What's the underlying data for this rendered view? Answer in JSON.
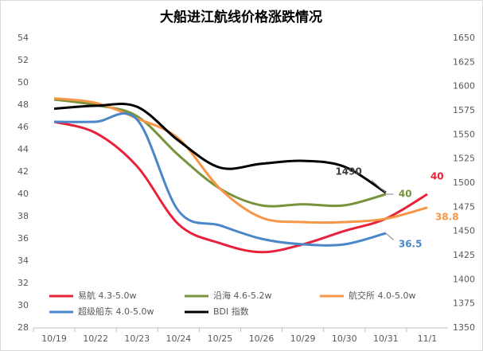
{
  "chart_data": {
    "type": "line",
    "title": "大船进江航线价格涨跌情况",
    "categories": [
      "10/19",
      "10/22",
      "10/23",
      "10/24",
      "10/25",
      "10/26",
      "10/29",
      "10/30",
      "10/31",
      "11/1"
    ],
    "ylim": [
      28,
      54
    ],
    "yticks": [
      28,
      30,
      32,
      34,
      36,
      38,
      40,
      42,
      44,
      46,
      48,
      50,
      52,
      54
    ],
    "y2lim": [
      1350,
      1650
    ],
    "y2ticks": [
      1350,
      1375,
      1400,
      1425,
      1450,
      1475,
      1500,
      1525,
      1550,
      1575,
      1600,
      1625,
      1650
    ],
    "grid": false,
    "legend": "bottom-left",
    "series": [
      {
        "name": "易航 4.3-5.0w",
        "color": "#e8213a",
        "values": [
          46.5,
          45.5,
          42.5,
          37.3,
          35.6,
          34.8,
          35.5,
          36.7,
          37.8,
          40
        ]
      },
      {
        "name": "沿海 4.6-5.2w",
        "color": "#77933c",
        "values": [
          48.5,
          48.0,
          47.0,
          43.5,
          40.5,
          39.0,
          39.1,
          39.0,
          40,
          null
        ]
      },
      {
        "name": "航交所 4.0-5.0w",
        "color": "#f79646",
        "values": [
          48.6,
          48.2,
          46.8,
          45.0,
          40.5,
          37.9,
          37.5,
          37.5,
          37.8,
          38.8
        ]
      },
      {
        "name": "超级船东 4.0-5.0w",
        "color": "#4a86c8",
        "values": [
          46.5,
          46.5,
          46.7,
          38.5,
          37.2,
          36.0,
          35.5,
          35.5,
          36.5,
          null
        ]
      },
      {
        "name": "BDI 指数",
        "color": "#000000",
        "axis": "y2",
        "values": [
          1577,
          1580,
          1579,
          1544,
          1516,
          1520,
          1523,
          1517,
          1490,
          null
        ]
      }
    ]
  }
}
